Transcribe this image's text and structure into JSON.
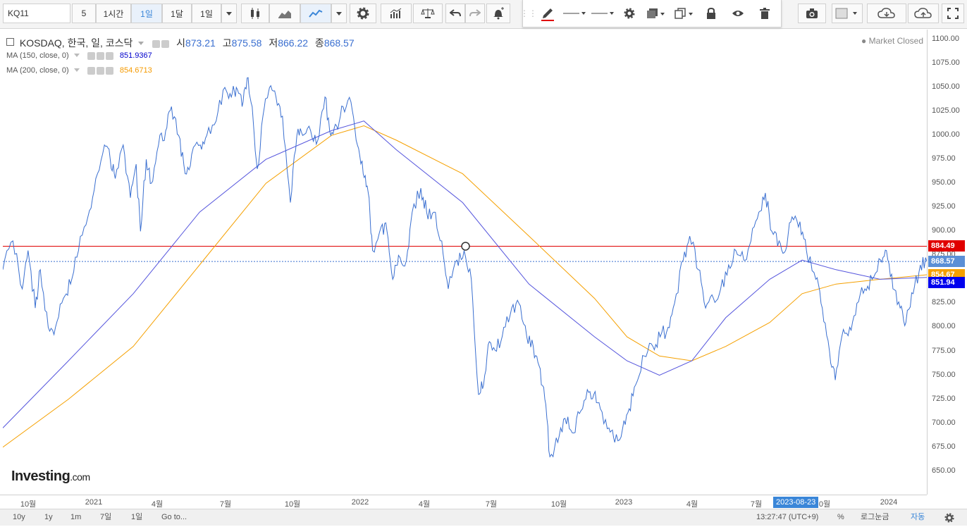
{
  "toolbar": {
    "symbol": "KQ11",
    "interval_value": "5",
    "intervals": [
      "1시간",
      "1일",
      "1달",
      "1일"
    ],
    "active_interval_index": 1
  },
  "legend": {
    "title": "KOSDAQ, 한국, 일, 코스닥",
    "open_label": "시",
    "open_value": "873.21",
    "high_label": "고",
    "high_value": "875.58",
    "low_label": "저",
    "low_value": "866.22",
    "close_label": "종",
    "close_value": "868.57",
    "ma150_label": "MA (150, close, 0)",
    "ma150_value": "851.9367",
    "ma200_label": "MA (200, close, 0)",
    "ma200_value": "854.6713",
    "market_status": "Market Closed"
  },
  "price_axis": {
    "ticks": [
      "1100.00",
      "1075.00",
      "1050.00",
      "1025.00",
      "1000.00",
      "975.00",
      "950.00",
      "925.00",
      "900.00",
      "875.00",
      "850.00",
      "825.00",
      "800.00",
      "775.00",
      "750.00",
      "725.00",
      "700.00",
      "675.00",
      "650.00"
    ],
    "labels": [
      {
        "text": "884.49",
        "color": "#e00000",
        "value": 884.49
      },
      {
        "text": "868.57",
        "color": "#5b8fd6",
        "value": 868.57
      },
      {
        "text": "854.67",
        "color": "#f5a000",
        "value": 854.67
      },
      {
        "text": "851.94",
        "color": "#0000ee",
        "value": 851.94
      }
    ]
  },
  "time_axis": {
    "ticks": [
      "10월",
      "2021",
      "4월",
      "7월",
      "10월",
      "2022",
      "4월",
      "7월",
      "10월",
      "2023",
      "4월",
      "7월",
      "0월",
      "2024"
    ],
    "crosshair_label": "2023-08-23"
  },
  "bottombar": {
    "ranges": [
      "10y",
      "1y",
      "1m",
      "7일",
      "1일"
    ],
    "goto": "Go to...",
    "clock": "13:27:47 (UTC+9)",
    "percent": "%",
    "log": "로그눈금",
    "auto": "자동"
  },
  "logo": {
    "main": "Investing",
    "suffix": ".com"
  },
  "chart_data": {
    "type": "line",
    "title": "KOSDAQ, 한국, 일, 코스닥",
    "ylim": [
      640,
      1110
    ],
    "grid": false,
    "series": [
      {
        "name": "KOSDAQ",
        "color": "#3a6fd0"
      },
      {
        "name": "MA (150, close, 0)",
        "color": "#5555dd"
      },
      {
        "name": "MA (200, close, 0)",
        "color": "#f5a000"
      }
    ],
    "horizontal_lines": [
      {
        "value": 884.49,
        "color": "#e00000",
        "style": "solid"
      },
      {
        "value": 868.57,
        "color": "#3a6fd0",
        "style": "dotted"
      }
    ],
    "price_points": [
      [
        "2020-09-01",
        860
      ],
      [
        "2020-09-15",
        890
      ],
      [
        "2020-09-28",
        840
      ],
      [
        "2020-10-06",
        880
      ],
      [
        "2020-10-16",
        820
      ],
      [
        "2020-10-23",
        860
      ],
      [
        "2020-11-03",
        800
      ],
      [
        "2020-11-13",
        800
      ],
      [
        "2020-11-24",
        830
      ],
      [
        "2020-12-04",
        845
      ],
      [
        "2020-12-15",
        880
      ],
      [
        "2020-12-28",
        915
      ],
      [
        "2021-01-08",
        955
      ],
      [
        "2021-01-20",
        990
      ],
      [
        "2021-01-28",
        975
      ],
      [
        "2021-02-04",
        955
      ],
      [
        "2021-02-15",
        990
      ],
      [
        "2021-02-25",
        935
      ],
      [
        "2021-03-05",
        970
      ],
      [
        "2021-03-11",
        900
      ],
      [
        "2021-03-19",
        975
      ],
      [
        "2021-03-26",
        950
      ],
      [
        "2021-04-05",
        990
      ],
      [
        "2021-04-15",
        1005
      ],
      [
        "2021-04-23",
        1030
      ],
      [
        "2021-05-03",
        1000
      ],
      [
        "2021-05-12",
        960
      ],
      [
        "2021-05-21",
        980
      ],
      [
        "2021-06-02",
        990
      ],
      [
        "2021-06-11",
        1000
      ],
      [
        "2021-06-24",
        1015
      ],
      [
        "2021-07-06",
        1050
      ],
      [
        "2021-07-15",
        1040
      ],
      [
        "2021-07-22",
        1050
      ],
      [
        "2021-07-30",
        1030
      ],
      [
        "2021-08-06",
        1060
      ],
      [
        "2021-08-13",
        1030
      ],
      [
        "2021-08-20",
        965
      ],
      [
        "2021-08-30",
        1030
      ],
      [
        "2021-09-06",
        1050
      ],
      [
        "2021-09-15",
        1040
      ],
      [
        "2021-09-24",
        1020
      ],
      [
        "2021-10-05",
        930
      ],
      [
        "2021-10-14",
        1000
      ],
      [
        "2021-10-22",
        1000
      ],
      [
        "2021-11-02",
        1005
      ],
      [
        "2021-11-12",
        995
      ],
      [
        "2021-11-22",
        1040
      ],
      [
        "2021-11-30",
        1000
      ],
      [
        "2021-12-08",
        1010
      ],
      [
        "2021-12-17",
        1030
      ],
      [
        "2021-12-28",
        1035
      ],
      [
        "2022-01-06",
        990
      ],
      [
        "2022-01-14",
        960
      ],
      [
        "2022-01-21",
        940
      ],
      [
        "2022-01-27",
        880
      ],
      [
        "2022-02-08",
        905
      ],
      [
        "2022-02-16",
        900
      ],
      [
        "2022-02-24",
        850
      ],
      [
        "2022-03-04",
        875
      ],
      [
        "2022-03-15",
        870
      ],
      [
        "2022-03-23",
        920
      ],
      [
        "2022-04-04",
        945
      ],
      [
        "2022-04-12",
        920
      ],
      [
        "2022-04-22",
        920
      ],
      [
        "2022-05-03",
        890
      ],
      [
        "2022-05-12",
        840
      ],
      [
        "2022-05-24",
        870
      ],
      [
        "2022-06-03",
        880
      ],
      [
        "2022-06-13",
        850
      ],
      [
        "2022-06-23",
        730
      ],
      [
        "2022-06-30",
        740
      ],
      [
        "2022-07-08",
        785
      ],
      [
        "2022-07-18",
        775
      ],
      [
        "2022-07-28",
        800
      ],
      [
        "2022-08-08",
        820
      ],
      [
        "2022-08-18",
        825
      ],
      [
        "2022-08-29",
        790
      ],
      [
        "2022-09-07",
        780
      ],
      [
        "2022-09-15",
        760
      ],
      [
        "2022-09-23",
        725
      ],
      [
        "2022-09-30",
        665
      ],
      [
        "2022-10-11",
        680
      ],
      [
        "2022-10-21",
        705
      ],
      [
        "2022-10-31",
        690
      ],
      [
        "2022-11-10",
        710
      ],
      [
        "2022-11-21",
        735
      ],
      [
        "2022-11-30",
        730
      ],
      [
        "2022-12-09",
        715
      ],
      [
        "2022-12-21",
        695
      ],
      [
        "2022-12-29",
        680
      ],
      [
        "2023-01-09",
        695
      ],
      [
        "2023-01-18",
        715
      ],
      [
        "2023-01-27",
        740
      ],
      [
        "2023-02-08",
        770
      ],
      [
        "2023-02-20",
        780
      ],
      [
        "2023-03-02",
        790
      ],
      [
        "2023-03-13",
        800
      ],
      [
        "2023-03-22",
        825
      ],
      [
        "2023-04-03",
        870
      ],
      [
        "2023-04-12",
        895
      ],
      [
        "2023-04-24",
        860
      ],
      [
        "2023-05-04",
        820
      ],
      [
        "2023-05-15",
        830
      ],
      [
        "2023-05-25",
        840
      ],
      [
        "2023-06-05",
        865
      ],
      [
        "2023-06-15",
        880
      ],
      [
        "2023-06-26",
        870
      ],
      [
        "2023-07-06",
        890
      ],
      [
        "2023-07-17",
        920
      ],
      [
        "2023-07-26",
        940
      ],
      [
        "2023-08-04",
        900
      ],
      [
        "2023-08-14",
        890
      ],
      [
        "2023-08-23",
        880
      ],
      [
        "2023-09-01",
        915
      ],
      [
        "2023-09-12",
        910
      ],
      [
        "2023-09-21",
        880
      ],
      [
        "2023-10-04",
        850
      ],
      [
        "2023-10-13",
        820
      ],
      [
        "2023-10-23",
        775
      ],
      [
        "2023-10-31",
        745
      ],
      [
        "2023-11-09",
        790
      ],
      [
        "2023-11-20",
        800
      ],
      [
        "2023-11-30",
        825
      ],
      [
        "2023-12-11",
        840
      ],
      [
        "2023-12-21",
        850
      ],
      [
        "2024-01-02",
        870
      ],
      [
        "2024-01-10",
        880
      ],
      [
        "2024-01-19",
        840
      ],
      [
        "2024-01-29",
        820
      ],
      [
        "2024-02-06",
        805
      ],
      [
        "2024-02-16",
        835
      ],
      [
        "2024-02-26",
        865
      ],
      [
        "2024-03-06",
        868.57
      ]
    ],
    "ma150_points": [
      [
        "2020-09-01",
        695
      ],
      [
        "2020-12-01",
        765
      ],
      [
        "2021-03-01",
        835
      ],
      [
        "2021-06-01",
        920
      ],
      [
        "2021-09-01",
        975
      ],
      [
        "2021-12-01",
        1005
      ],
      [
        "2022-01-15",
        1015
      ],
      [
        "2022-03-01",
        985
      ],
      [
        "2022-06-01",
        930
      ],
      [
        "2022-09-01",
        845
      ],
      [
        "2022-12-01",
        790
      ],
      [
        "2023-01-15",
        765
      ],
      [
        "2023-03-01",
        750
      ],
      [
        "2023-04-15",
        765
      ],
      [
        "2023-06-01",
        810
      ],
      [
        "2023-08-01",
        850
      ],
      [
        "2023-09-15",
        870
      ],
      [
        "2023-11-01",
        860
      ],
      [
        "2024-01-01",
        850
      ],
      [
        "2024-03-06",
        851.94
      ]
    ],
    "ma200_points": [
      [
        "2020-09-01",
        675
      ],
      [
        "2020-12-01",
        725
      ],
      [
        "2021-03-01",
        780
      ],
      [
        "2021-06-01",
        865
      ],
      [
        "2021-09-01",
        950
      ],
      [
        "2021-12-01",
        1000
      ],
      [
        "2022-01-15",
        1010
      ],
      [
        "2022-03-01",
        995
      ],
      [
        "2022-06-01",
        960
      ],
      [
        "2022-09-01",
        895
      ],
      [
        "2022-12-01",
        830
      ],
      [
        "2023-01-15",
        790
      ],
      [
        "2023-03-01",
        770
      ],
      [
        "2023-04-15",
        765
      ],
      [
        "2023-06-01",
        780
      ],
      [
        "2023-08-01",
        805
      ],
      [
        "2023-09-15",
        835
      ],
      [
        "2023-11-01",
        845
      ],
      [
        "2024-01-01",
        850
      ],
      [
        "2024-03-06",
        854.67
      ]
    ]
  }
}
